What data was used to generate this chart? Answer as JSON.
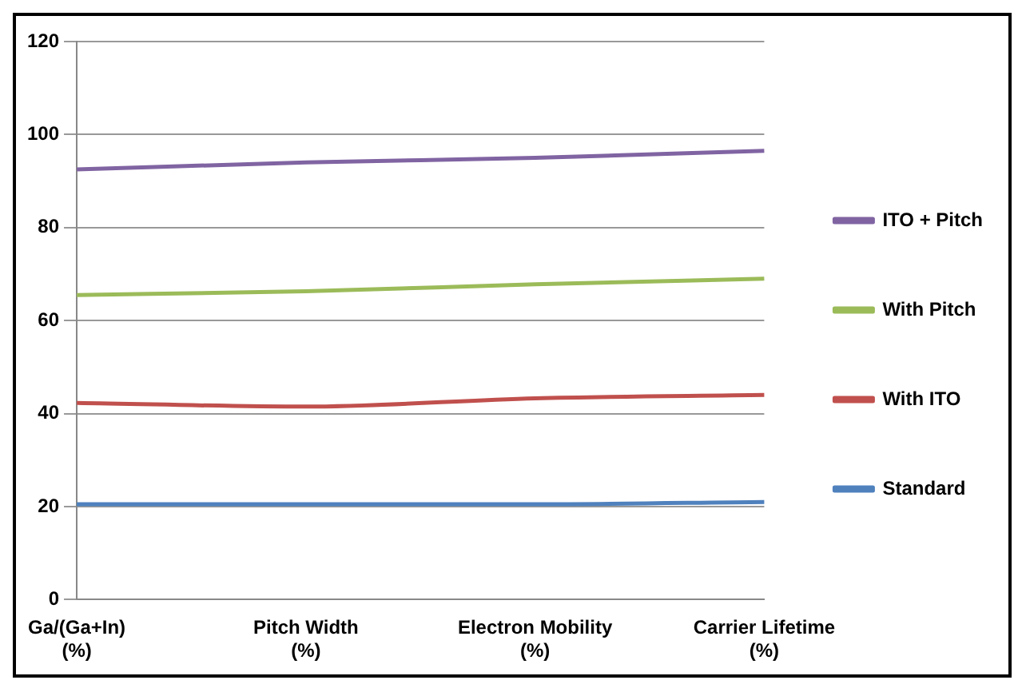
{
  "chart_data": {
    "type": "line",
    "categories": [
      "Ga/(Ga+In)\n(%)",
      "Pitch Width\n(%)",
      "Electron Mobility\n(%)",
      "Carrier Lifetime\n(%)"
    ],
    "series": [
      {
        "name": "ITO + Pitch",
        "color": "#8064a2",
        "values": [
          92.5,
          94,
          95,
          96.5
        ]
      },
      {
        "name": "With Pitch",
        "color": "#9bbb59",
        "values": [
          65.5,
          66.3,
          67.8,
          69
        ]
      },
      {
        "name": "With ITO",
        "color": "#c0504d",
        "values": [
          42.3,
          41.5,
          43.3,
          44
        ]
      },
      {
        "name": "Standard",
        "color": "#4f81bd",
        "values": [
          20.5,
          20.5,
          20.5,
          21
        ]
      }
    ],
    "ylim": [
      0,
      120
    ],
    "yticks": [
      0,
      20,
      40,
      60,
      80,
      100,
      120
    ],
    "grid": "y",
    "legend": "right",
    "marker": "none",
    "line_style": "solid"
  }
}
